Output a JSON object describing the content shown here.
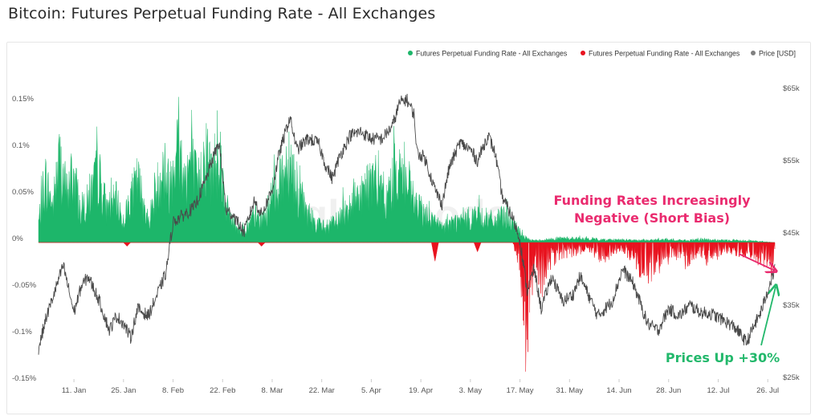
{
  "page": {
    "title": "Bitcoin: Futures Perpetual Funding Rate - All Exchanges"
  },
  "colors": {
    "positive": "#1db66a",
    "negative": "#e8121e",
    "price": "#4a4a4a",
    "annotation_negative": "#ea2b6f",
    "annotation_positive": "#22b86b"
  },
  "chart_data": {
    "type": "line",
    "legend_position": "top-right",
    "legend": [
      {
        "label": "Futures Perpetual Funding Rate - All Exchanges",
        "color": "#1db66a"
      },
      {
        "label": "Futures Perpetual Funding Rate - All Exchanges",
        "color": "#e8121e"
      },
      {
        "label": "Price [USD]",
        "color": "#808080"
      }
    ],
    "x_ticks": [
      "11. Jan",
      "25. Jan",
      "8. Feb",
      "22. Feb",
      "8. Mar",
      "22. Mar",
      "5. Apr",
      "19. Apr",
      "3. May",
      "17. May",
      "31. May",
      "14. Jun",
      "28. Jun",
      "12. Jul",
      "26. Jul"
    ],
    "y_left": {
      "ticks": [
        "0.15%",
        "0.1%",
        "0.05%",
        "0%",
        "-0.05%",
        "-0.1%",
        "-0.15%"
      ],
      "range": [
        -0.15,
        0.15
      ]
    },
    "y_right": {
      "ticks": [
        "$65k",
        "$55k",
        "$45k",
        "$35k",
        "$25k"
      ],
      "range": [
        25000,
        65000
      ]
    },
    "x_range": [
      "2021-01-01",
      "2021-07-28"
    ],
    "funding_keypoints": [
      [
        "2021-01-01",
        0.03
      ],
      [
        "2021-01-03",
        0.09
      ],
      [
        "2021-01-05",
        0.05
      ],
      [
        "2021-01-07",
        0.12
      ],
      [
        "2021-01-09",
        0.07
      ],
      [
        "2021-01-11",
        0.1
      ],
      [
        "2021-01-13",
        0.04
      ],
      [
        "2021-01-15",
        0.06
      ],
      [
        "2021-01-18",
        0.1
      ],
      [
        "2021-01-20",
        0.05
      ],
      [
        "2021-01-23",
        0.06
      ],
      [
        "2021-01-25",
        0.03
      ],
      [
        "2021-01-27",
        0.06
      ],
      [
        "2021-01-29",
        0.09
      ],
      [
        "2021-02-01",
        0.03
      ],
      [
        "2021-02-03",
        0.07
      ],
      [
        "2021-02-05",
        0.11
      ],
      [
        "2021-02-07",
        0.08
      ],
      [
        "2021-02-09",
        0.15
      ],
      [
        "2021-02-11",
        0.09
      ],
      [
        "2021-02-13",
        0.12
      ],
      [
        "2021-02-15",
        0.08
      ],
      [
        "2021-02-17",
        0.13
      ],
      [
        "2021-02-19",
        0.1
      ],
      [
        "2021-02-21",
        0.14
      ],
      [
        "2021-02-23",
        0.05
      ],
      [
        "2021-02-25",
        0.03
      ],
      [
        "2021-02-27",
        0.02
      ],
      [
        "2021-03-01",
        0.02
      ],
      [
        "2021-03-03",
        0.04
      ],
      [
        "2021-03-05",
        0.03
      ],
      [
        "2021-03-07",
        0.05
      ],
      [
        "2021-03-09",
        0.08
      ],
      [
        "2021-03-11",
        0.1
      ],
      [
        "2021-03-13",
        0.13
      ],
      [
        "2021-03-15",
        0.07
      ],
      [
        "2021-03-17",
        0.05
      ],
      [
        "2021-03-20",
        0.03
      ],
      [
        "2021-03-23",
        0.02
      ],
      [
        "2021-03-26",
        0.03
      ],
      [
        "2021-03-29",
        0.05
      ],
      [
        "2021-04-01",
        0.07
      ],
      [
        "2021-04-04",
        0.08
      ],
      [
        "2021-04-07",
        0.09
      ],
      [
        "2021-04-09",
        0.05
      ],
      [
        "2021-04-11",
        0.09
      ],
      [
        "2021-04-13",
        0.11
      ],
      [
        "2021-04-15",
        0.08
      ],
      [
        "2021-04-17",
        0.06
      ],
      [
        "2021-04-18",
        0.05
      ],
      [
        "2021-04-20",
        0.04
      ],
      [
        "2021-04-23",
        0.03
      ],
      [
        "2021-04-25",
        0.02
      ],
      [
        "2021-04-28",
        0.03
      ],
      [
        "2021-05-01",
        0.03
      ],
      [
        "2021-05-04",
        0.04
      ],
      [
        "2021-05-07",
        0.035
      ],
      [
        "2021-05-10",
        0.03
      ],
      [
        "2021-05-13",
        0.04
      ],
      [
        "2021-05-15",
        0.025
      ],
      [
        "2021-05-17",
        0.015
      ],
      [
        "2021-05-19",
        0.005
      ],
      [
        "2021-05-21",
        0.003
      ],
      [
        "2021-05-24",
        0.004
      ],
      [
        "2021-05-28",
        0.006
      ],
      [
        "2021-06-02",
        0.006
      ],
      [
        "2021-06-08",
        0.004
      ],
      [
        "2021-06-14",
        0.004
      ],
      [
        "2021-06-20",
        0.003
      ],
      [
        "2021-06-26",
        0.004
      ],
      [
        "2021-07-02",
        0.003
      ],
      [
        "2021-07-08",
        0.004
      ],
      [
        "2021-07-14",
        0.003
      ],
      [
        "2021-07-20",
        0.003
      ],
      [
        "2021-07-28",
        0.0
      ]
    ],
    "funding_negative_keypoints": [
      [
        "2021-01-25",
        0.0
      ],
      [
        "2021-01-26",
        -0.004
      ],
      [
        "2021-01-27",
        0.0
      ],
      [
        "2021-03-04",
        0.0
      ],
      [
        "2021-03-05",
        -0.004
      ],
      [
        "2021-03-06",
        0.0
      ],
      [
        "2021-04-22",
        0.0
      ],
      [
        "2021-04-23",
        -0.02
      ],
      [
        "2021-04-24",
        0.0
      ],
      [
        "2021-05-04",
        0.0
      ],
      [
        "2021-05-05",
        -0.01
      ],
      [
        "2021-05-06",
        0.0
      ],
      [
        "2021-05-15",
        0.0
      ],
      [
        "2021-05-16",
        -0.015
      ],
      [
        "2021-05-17",
        -0.035
      ],
      [
        "2021-05-19",
        -0.13
      ],
      [
        "2021-05-20",
        -0.06
      ],
      [
        "2021-05-21",
        -0.03
      ],
      [
        "2021-05-23",
        -0.05
      ],
      [
        "2021-05-25",
        -0.025
      ],
      [
        "2021-05-28",
        -0.015
      ],
      [
        "2021-06-01",
        -0.012
      ],
      [
        "2021-06-05",
        -0.008
      ],
      [
        "2021-06-09",
        -0.02
      ],
      [
        "2021-06-12",
        -0.012
      ],
      [
        "2021-06-15",
        -0.008
      ],
      [
        "2021-06-18",
        -0.02
      ],
      [
        "2021-06-21",
        -0.035
      ],
      [
        "2021-06-24",
        -0.038
      ],
      [
        "2021-06-27",
        -0.02
      ],
      [
        "2021-06-30",
        -0.015
      ],
      [
        "2021-07-03",
        -0.025
      ],
      [
        "2021-07-06",
        -0.012
      ],
      [
        "2021-07-09",
        -0.02
      ],
      [
        "2021-07-12",
        -0.015
      ],
      [
        "2021-07-15",
        -0.01
      ],
      [
        "2021-07-18",
        -0.012
      ],
      [
        "2021-07-21",
        -0.015
      ],
      [
        "2021-07-24",
        -0.025
      ],
      [
        "2021-07-26",
        -0.02
      ],
      [
        "2021-07-27",
        -0.035
      ],
      [
        "2021-07-28",
        -0.01
      ]
    ],
    "price_keypoints": [
      [
        "2021-01-01",
        29000
      ],
      [
        "2021-01-03",
        33000
      ],
      [
        "2021-01-08",
        40500
      ],
      [
        "2021-01-11",
        34000
      ],
      [
        "2021-01-13",
        37500
      ],
      [
        "2021-01-15",
        39000
      ],
      [
        "2021-01-18",
        35800
      ],
      [
        "2021-01-21",
        31500
      ],
      [
        "2021-01-23",
        33500
      ],
      [
        "2021-01-25",
        32500
      ],
      [
        "2021-01-27",
        30500
      ],
      [
        "2021-01-29",
        34500
      ],
      [
        "2021-02-01",
        33500
      ],
      [
        "2021-02-04",
        37000
      ],
      [
        "2021-02-06",
        39500
      ],
      [
        "2021-02-08",
        46500
      ],
      [
        "2021-02-11",
        47500
      ],
      [
        "2021-02-14",
        48500
      ],
      [
        "2021-02-17",
        52000
      ],
      [
        "2021-02-19",
        55000
      ],
      [
        "2021-02-21",
        57500
      ],
      [
        "2021-02-23",
        48000
      ],
      [
        "2021-02-25",
        47500
      ],
      [
        "2021-02-28",
        45000
      ],
      [
        "2021-03-03",
        49500
      ],
      [
        "2021-03-05",
        47500
      ],
      [
        "2021-03-08",
        51000
      ],
      [
        "2021-03-10",
        56000
      ],
      [
        "2021-03-13",
        61000
      ],
      [
        "2021-03-15",
        56500
      ],
      [
        "2021-03-18",
        58000
      ],
      [
        "2021-03-21",
        57500
      ],
      [
        "2021-03-23",
        54500
      ],
      [
        "2021-03-25",
        52500
      ],
      [
        "2021-03-27",
        55500
      ],
      [
        "2021-03-30",
        58500
      ],
      [
        "2021-04-02",
        59000
      ],
      [
        "2021-04-05",
        58000
      ],
      [
        "2021-04-08",
        58000
      ],
      [
        "2021-04-11",
        59800
      ],
      [
        "2021-04-13",
        63000
      ],
      [
        "2021-04-15",
        63500
      ],
      [
        "2021-04-17",
        61500
      ],
      [
        "2021-04-18",
        56000
      ],
      [
        "2021-04-20",
        55500
      ],
      [
        "2021-04-23",
        51000
      ],
      [
        "2021-04-25",
        49000
      ],
      [
        "2021-04-27",
        54000
      ],
      [
        "2021-04-30",
        57500
      ],
      [
        "2021-05-03",
        56500
      ],
      [
        "2021-05-05",
        55000
      ],
      [
        "2021-05-08",
        58500
      ],
      [
        "2021-05-10",
        56000
      ],
      [
        "2021-05-12",
        50000
      ],
      [
        "2021-05-15",
        47000
      ],
      [
        "2021-05-17",
        44000
      ],
      [
        "2021-05-19",
        37000
      ],
      [
        "2021-05-21",
        40000
      ],
      [
        "2021-05-23",
        34500
      ],
      [
        "2021-05-26",
        39000
      ],
      [
        "2021-05-29",
        35500
      ],
      [
        "2021-06-01",
        36500
      ],
      [
        "2021-06-03",
        39000
      ],
      [
        "2021-06-08",
        33500
      ],
      [
        "2021-06-12",
        35500
      ],
      [
        "2021-06-15",
        40000
      ],
      [
        "2021-06-18",
        38000
      ],
      [
        "2021-06-22",
        32500
      ],
      [
        "2021-06-25",
        31500
      ],
      [
        "2021-06-28",
        34500
      ],
      [
        "2021-07-01",
        33500
      ],
      [
        "2021-07-04",
        35000
      ],
      [
        "2021-07-07",
        34000
      ],
      [
        "2021-07-10",
        33800
      ],
      [
        "2021-07-14",
        32800
      ],
      [
        "2021-07-17",
        31800
      ],
      [
        "2021-07-20",
        29800
      ],
      [
        "2021-07-22",
        32000
      ],
      [
        "2021-07-24",
        34000
      ],
      [
        "2021-07-26",
        37000
      ],
      [
        "2021-07-28",
        40000
      ]
    ],
    "annotations": [
      {
        "text_lines": [
          "Funding Rates Increasingly",
          "Negative (Short Bias)"
        ],
        "color": "#ea2b6f"
      },
      {
        "text_lines": [
          "Prices Up +30%"
        ],
        "color": "#22b86b"
      }
    ],
    "watermark": "glassnode"
  }
}
